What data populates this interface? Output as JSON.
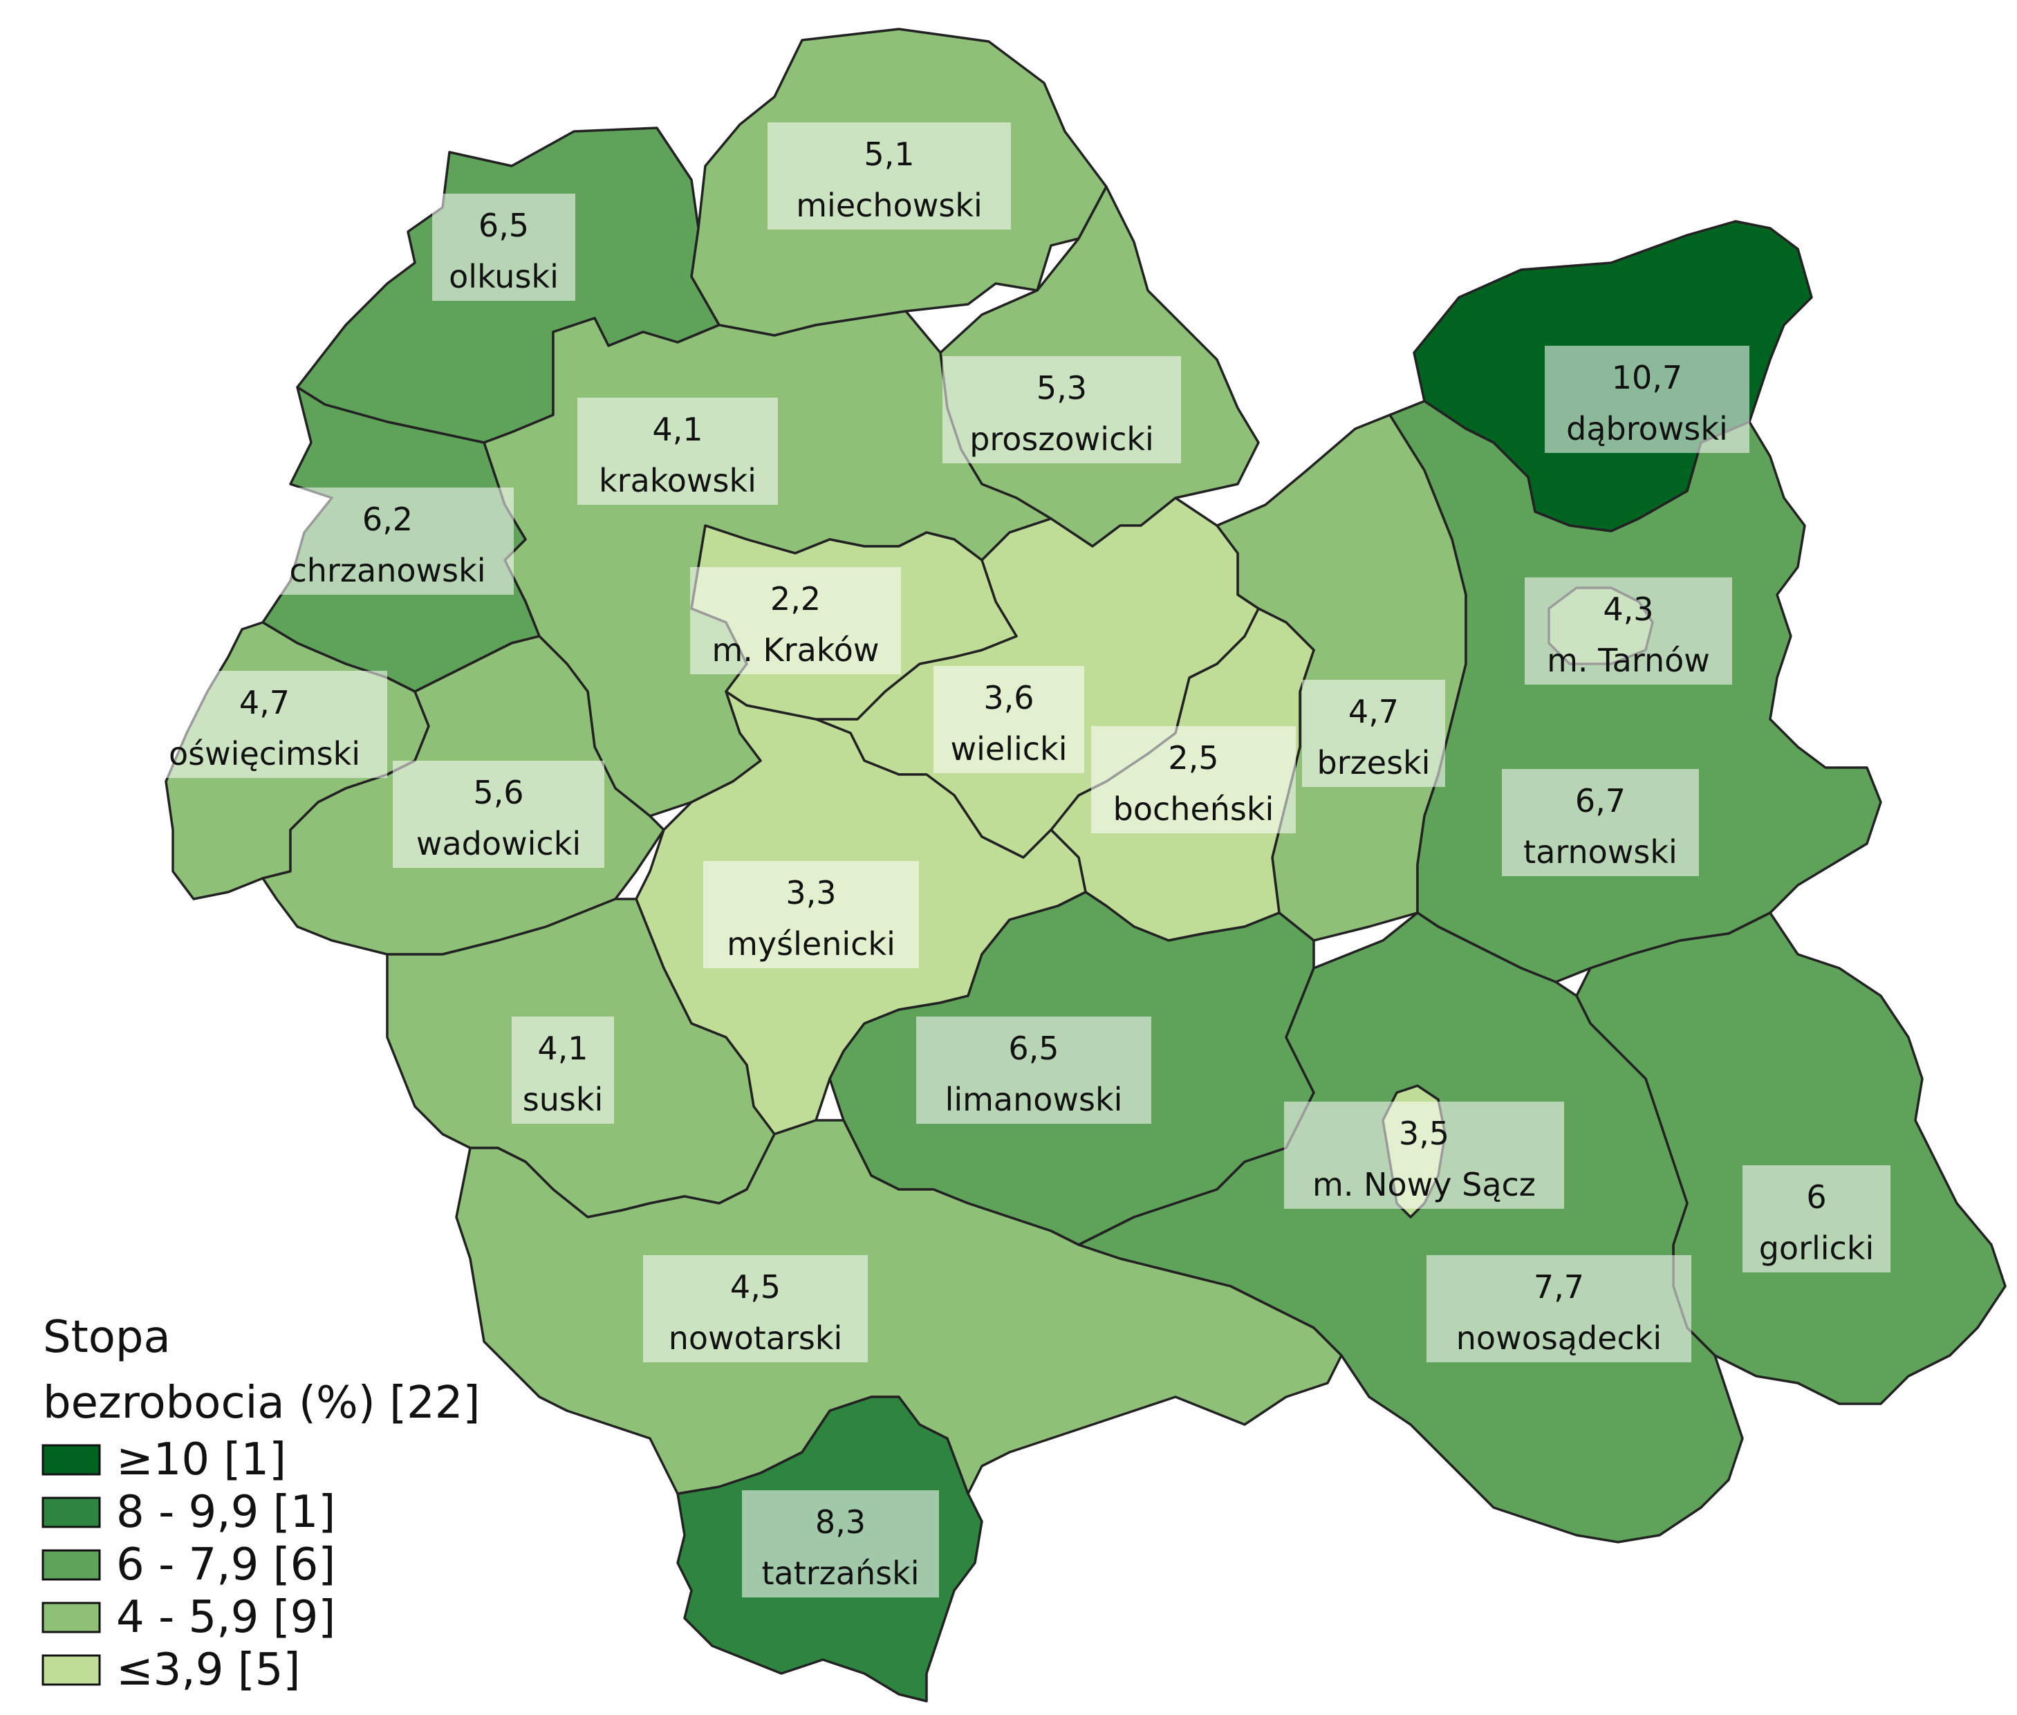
{
  "legend": {
    "title_line1": "Stopa",
    "title_line2": "bezrobocia (%) [22]",
    "classes": [
      {
        "label": "≥10 [1]",
        "color": "#006421"
      },
      {
        "label": "8 - 9,9 [1]",
        "color": "#2e8540"
      },
      {
        "label": "6 - 7,9 [6]",
        "color": "#5fa25a"
      },
      {
        "label": "4 - 5,9 [9]",
        "color": "#8fc077"
      },
      {
        "label": "≤3,9 [5]",
        "color": "#bfdd97"
      }
    ]
  },
  "districts": [
    {
      "key": "miechowski",
      "name": "miechowski",
      "value": "5,1",
      "cls": 3
    },
    {
      "key": "olkuski",
      "name": "olkuski",
      "value": "6,5",
      "cls": 2
    },
    {
      "key": "dabrowski",
      "name": "dąbrowski",
      "value": "10,7",
      "cls": 0
    },
    {
      "key": "proszowicki",
      "name": "proszowicki",
      "value": "5,3",
      "cls": 3
    },
    {
      "key": "krakowski",
      "name": "krakowski",
      "value": "4,1",
      "cls": 3
    },
    {
      "key": "chrzanowski",
      "name": "chrzanowski",
      "value": "6,2",
      "cls": 2
    },
    {
      "key": "krakow",
      "name": "m. Kraków",
      "value": "2,2",
      "cls": 4
    },
    {
      "key": "tarnow",
      "name": "m. Tarnów",
      "value": "4,3",
      "cls": 3
    },
    {
      "key": "oswiecimski",
      "name": "oświęcimski",
      "value": "4,7",
      "cls": 3
    },
    {
      "key": "wielicki",
      "name": "wielicki",
      "value": "3,6",
      "cls": 4
    },
    {
      "key": "brzeski",
      "name": "brzeski",
      "value": "4,7",
      "cls": 3
    },
    {
      "key": "wadowicki",
      "name": "wadowicki",
      "value": "5,6",
      "cls": 3
    },
    {
      "key": "bochenski",
      "name": "bocheński",
      "value": "2,5",
      "cls": 4
    },
    {
      "key": "tarnowski",
      "name": "tarnowski",
      "value": "6,7",
      "cls": 2
    },
    {
      "key": "myslenicki",
      "name": "myślenicki",
      "value": "3,3",
      "cls": 4
    },
    {
      "key": "limanowski",
      "name": "limanowski",
      "value": "6,5",
      "cls": 2
    },
    {
      "key": "suski",
      "name": "suski",
      "value": "4,1",
      "cls": 3
    },
    {
      "key": "nowysacz",
      "name": "m. Nowy Sącz",
      "value": "3,5",
      "cls": 4
    },
    {
      "key": "gorlicki",
      "name": "gorlicki",
      "value": "6",
      "cls": 2
    },
    {
      "key": "nowotarski",
      "name": "nowotarski",
      "value": "4,5",
      "cls": 3
    },
    {
      "key": "nowosadecki",
      "name": "nowosądecki",
      "value": "7,7",
      "cls": 2
    },
    {
      "key": "tatrzanski",
      "name": "tatrzański",
      "value": "8,3",
      "cls": 1
    }
  ]
}
